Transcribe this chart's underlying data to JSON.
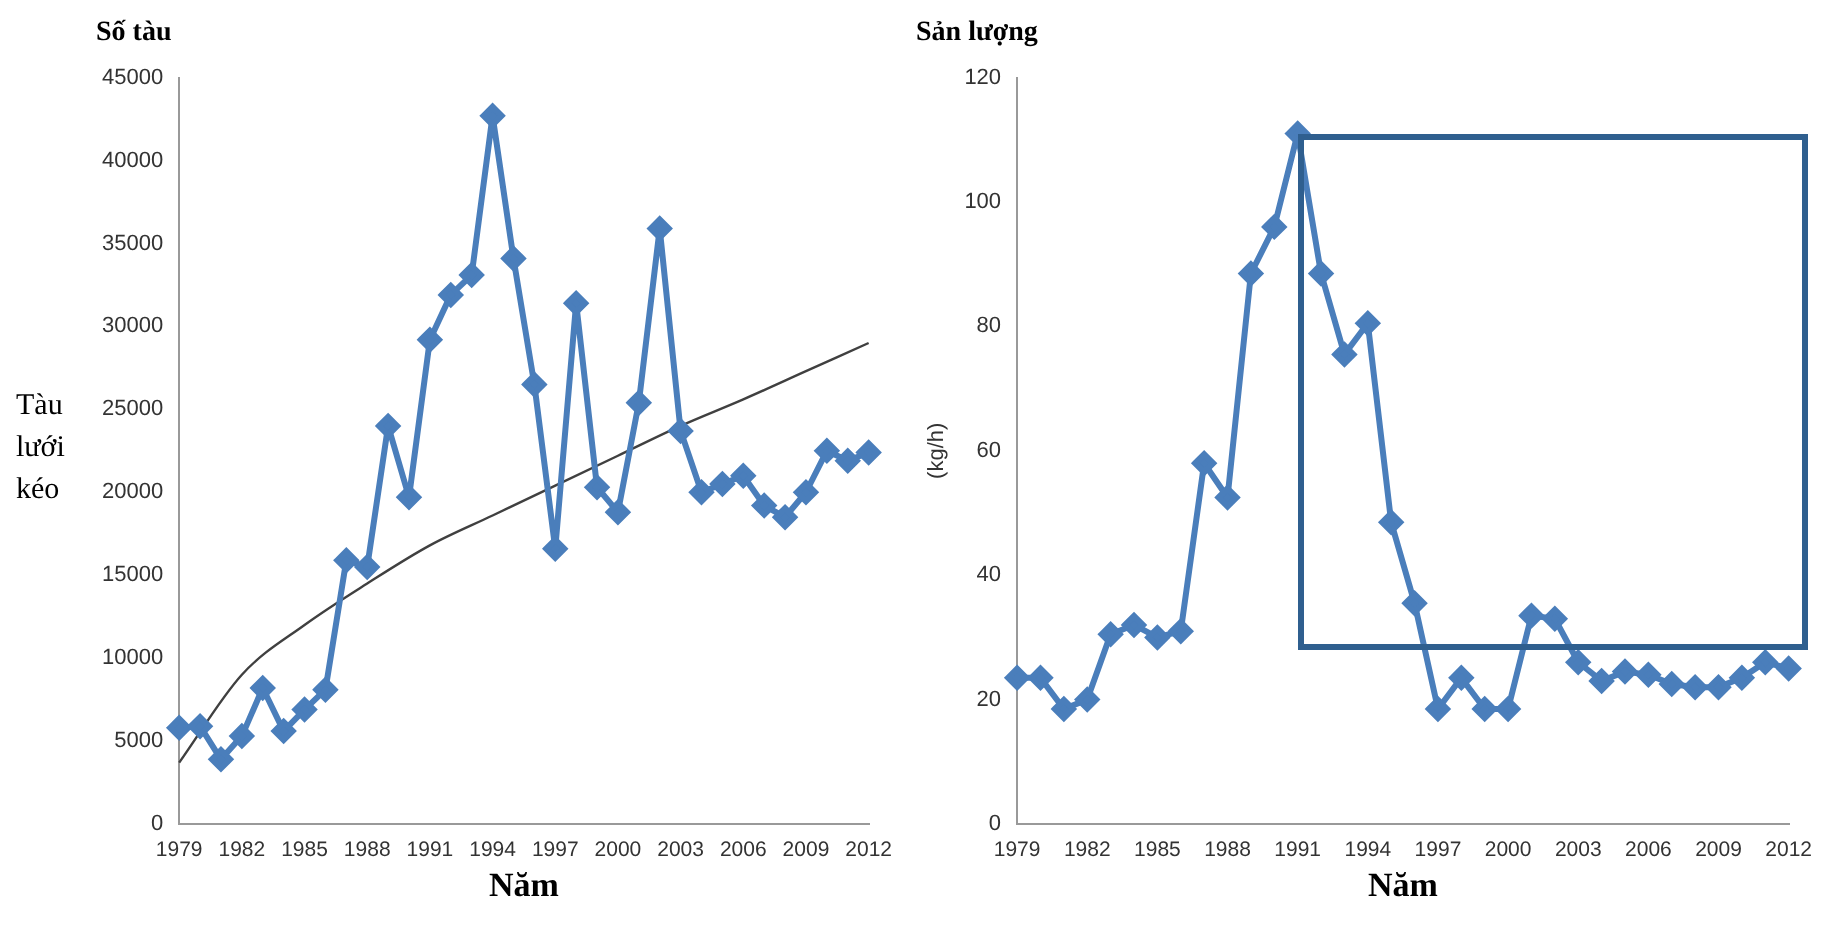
{
  "chart_data": [
    {
      "type": "line",
      "title": "Số tàu",
      "xlabel": "Năm",
      "ylabel": "Tàu lưới kéo",
      "categories": [
        "1979",
        null,
        null,
        "1982",
        null,
        null,
        "1985",
        null,
        null,
        "1988",
        null,
        null,
        "1991",
        null,
        null,
        "1994",
        null,
        null,
        "1997",
        null,
        null,
        "2000",
        null,
        null,
        "2003",
        null,
        null,
        "2006",
        null,
        null,
        "2009",
        null,
        null,
        "2012"
      ],
      "series": [
        {
          "color": "#4a7ebb",
          "values": [
            5800,
            5900,
            3900,
            5300,
            8200,
            5600,
            6900,
            8100,
            15900,
            15500,
            24000,
            19700,
            29200,
            31900,
            33100,
            42700,
            34100,
            26500,
            16600,
            31400,
            20300,
            18800,
            25400,
            35900,
            23700,
            20000,
            20500,
            21000,
            19200,
            18500,
            20000,
            22500,
            21900,
            22400
          ]
        },
        {
          "type": "line",
          "marker": "none",
          "color": "#404040",
          "values": [
            3700,
            null,
            null,
            9000,
            null,
            null,
            12000,
            null,
            null,
            14500,
            null,
            null,
            16800,
            null,
            null,
            18600,
            null,
            null,
            20400,
            null,
            null,
            22200,
            null,
            null,
            24000,
            null,
            null,
            25600,
            null,
            null,
            27300,
            null,
            null,
            29000
          ]
        }
      ],
      "ylim": [
        0,
        45000
      ],
      "yticks": [
        0,
        5000,
        10000,
        15000,
        20000,
        25000,
        30000,
        35000,
        40000,
        45000
      ],
      "marker": "diamond",
      "grid": false,
      "legend": false
    },
    {
      "type": "line",
      "title": "Sản lượng",
      "xlabel": "Năm",
      "ylabel": "(kg/h)",
      "categories": [
        "1979",
        null,
        null,
        "1982",
        null,
        null,
        "1985",
        null,
        null,
        "1988",
        null,
        null,
        "1991",
        null,
        null,
        "1994",
        null,
        null,
        "1997",
        null,
        null,
        "2000",
        null,
        null,
        "2003",
        null,
        null,
        "2006",
        null,
        null,
        "2009",
        null,
        null,
        "2012"
      ],
      "series": [
        {
          "color": "#4a7ebb",
          "values": [
            23.5,
            23.5,
            18.5,
            20,
            30.5,
            32,
            30,
            31,
            58,
            52.5,
            88.5,
            96,
            111,
            88.5,
            75.5,
            80.5,
            48.5,
            35.5,
            18.5,
            23.5,
            18.5,
            18.5,
            33.5,
            33,
            26,
            23,
            24.5,
            24,
            22.5,
            22,
            22,
            23.5,
            26,
            25
          ]
        }
      ],
      "ylim": [
        0,
        120
      ],
      "yticks": [
        0,
        20,
        40,
        60,
        80,
        100,
        120
      ],
      "marker": "diamond",
      "grid": false,
      "legend": false
    }
  ]
}
